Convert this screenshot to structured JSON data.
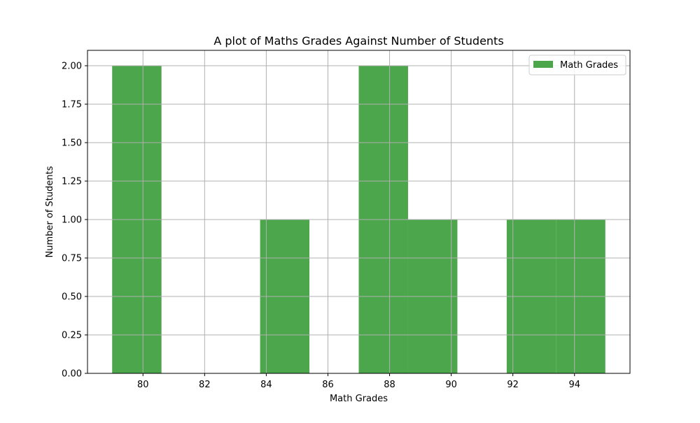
{
  "colors": {
    "bar": "#4ca64c",
    "grid": "#b0b0b0",
    "axis": "#000000",
    "legend_border": "#cccccc"
  },
  "chart_data": {
    "type": "bar",
    "subtype": "histogram",
    "title": "A plot of Maths Grades Against Number of Students",
    "xlabel": "Math Grades",
    "ylabel": "Number of Students",
    "xlim": [
      78.2,
      95.8
    ],
    "ylim": [
      0,
      2.1
    ],
    "xticks": [
      80,
      82,
      84,
      86,
      88,
      90,
      92,
      94
    ],
    "xtick_labels": [
      "80",
      "82",
      "84",
      "86",
      "88",
      "90",
      "92",
      "94"
    ],
    "yticks": [
      0,
      0.25,
      0.5,
      0.75,
      1.0,
      1.25,
      1.5,
      1.75,
      2.0
    ],
    "ytick_labels": [
      "0.00",
      "0.25",
      "0.50",
      "0.75",
      "1.00",
      "1.25",
      "1.50",
      "1.75",
      "2.00"
    ],
    "grid": true,
    "legend_position": "top-right",
    "series": [
      {
        "name": "Math Grades",
        "bins": [
          {
            "x0": 79.0,
            "x1": 80.6,
            "count": 2
          },
          {
            "x0": 80.6,
            "x1": 82.2,
            "count": 0
          },
          {
            "x0": 82.2,
            "x1": 83.8,
            "count": 0
          },
          {
            "x0": 83.8,
            "x1": 85.4,
            "count": 1
          },
          {
            "x0": 85.4,
            "x1": 87.0,
            "count": 0
          },
          {
            "x0": 87.0,
            "x1": 88.6,
            "count": 2
          },
          {
            "x0": 88.6,
            "x1": 90.2,
            "count": 1
          },
          {
            "x0": 90.2,
            "x1": 91.8,
            "count": 0
          },
          {
            "x0": 91.8,
            "x1": 93.4,
            "count": 1
          },
          {
            "x0": 93.4,
            "x1": 95.0,
            "count": 1
          }
        ]
      }
    ]
  }
}
